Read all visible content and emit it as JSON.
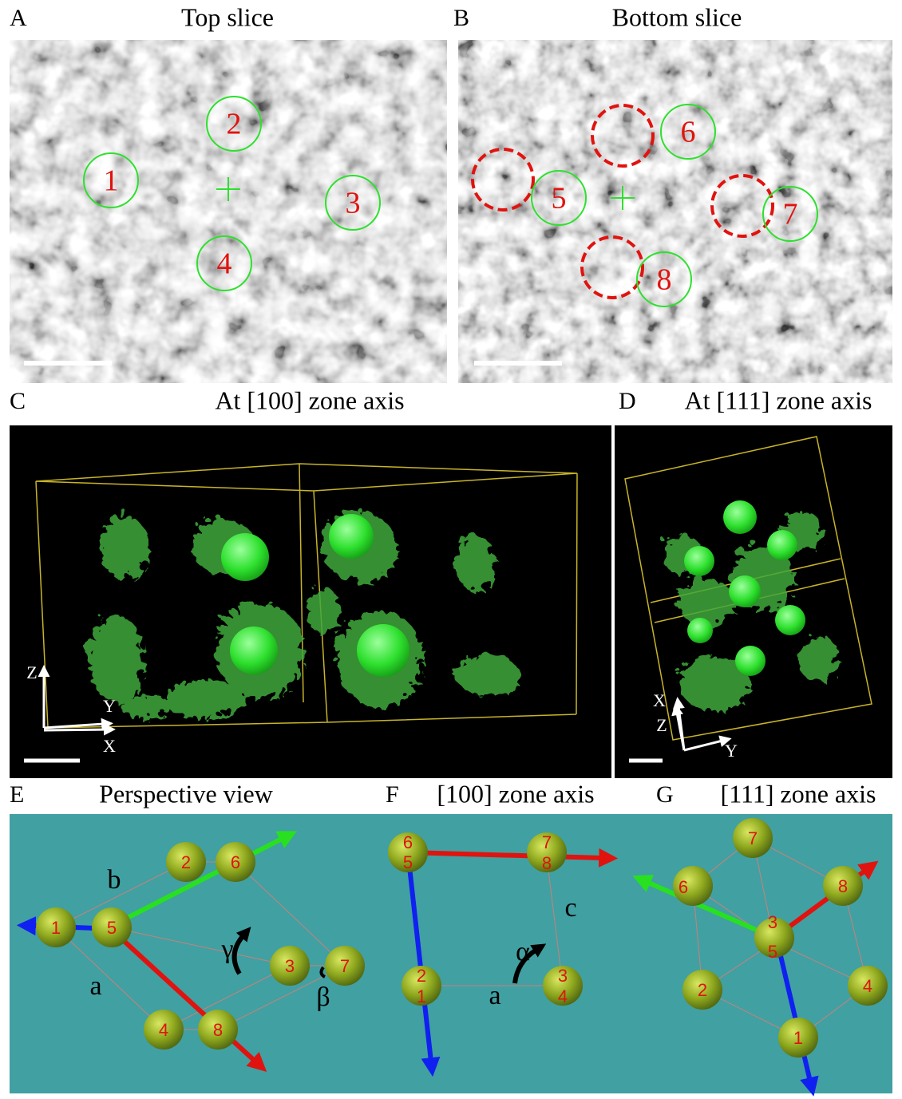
{
  "panels": [
    {
      "letter": "A",
      "title": "Top slice",
      "labels": [
        "1",
        "2",
        "3",
        "4"
      ]
    },
    {
      "letter": "B",
      "title": "Bottom slice",
      "labels": [
        "5",
        "6",
        "7",
        "8"
      ]
    },
    {
      "letter": "C",
      "title": "At [100] zone axis",
      "axes": [
        "Z",
        "Y",
        "X"
      ]
    },
    {
      "letter": "D",
      "title": "At [111] zone axis",
      "axes": [
        "X",
        "Z",
        "Y"
      ]
    },
    {
      "letter": "E",
      "title": "Perspective view",
      "atoms": [
        "1",
        "5",
        "2",
        "6",
        "3",
        "7",
        "4",
        "8"
      ],
      "lattice": [
        "b",
        "a",
        "γ",
        "β"
      ]
    },
    {
      "letter": "F",
      "title": "[100] zone axis",
      "atoms": [
        "6",
        "5",
        "7",
        "8",
        "2",
        "1",
        "3",
        "4"
      ],
      "lattice": [
        "α",
        "c",
        "a"
      ]
    },
    {
      "letter": "G",
      "title": "[111] zone axis",
      "atoms": [
        "7",
        "6",
        "8",
        "3",
        "5",
        "2",
        "4",
        "1"
      ]
    }
  ]
}
